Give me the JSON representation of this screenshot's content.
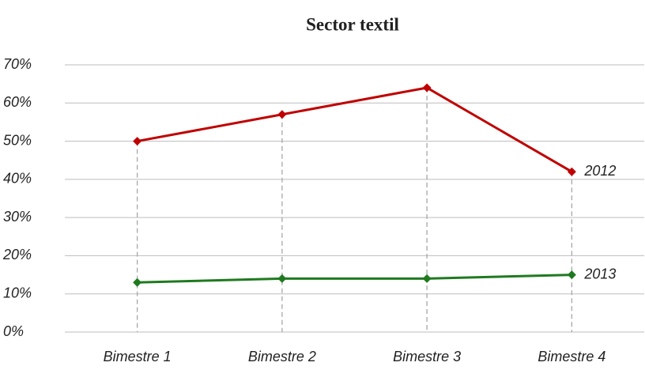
{
  "chart_data": {
    "type": "line",
    "title": "Sector textil",
    "categories": [
      "Bimestre 1",
      "Bimestre 2",
      "Bimestre 3",
      "Bimestre 4"
    ],
    "series": [
      {
        "name": "2012",
        "color": "#c00000",
        "values": [
          50,
          57,
          64,
          42
        ]
      },
      {
        "name": "2013",
        "color": "#1f7a1f",
        "values": [
          13,
          14,
          14,
          15
        ]
      }
    ],
    "ylim": [
      0,
      70
    ],
    "yticks": [
      {
        "value": 0,
        "label": "0%"
      },
      {
        "value": 10,
        "label": "10%"
      },
      {
        "value": 20,
        "label": "20%"
      },
      {
        "value": 30,
        "label": "30%"
      },
      {
        "value": 40,
        "label": "40%"
      },
      {
        "value": 50,
        "label": "50%"
      },
      {
        "value": 60,
        "label": "60%"
      },
      {
        "value": 70,
        "label": "70%"
      }
    ],
    "grid": true
  }
}
